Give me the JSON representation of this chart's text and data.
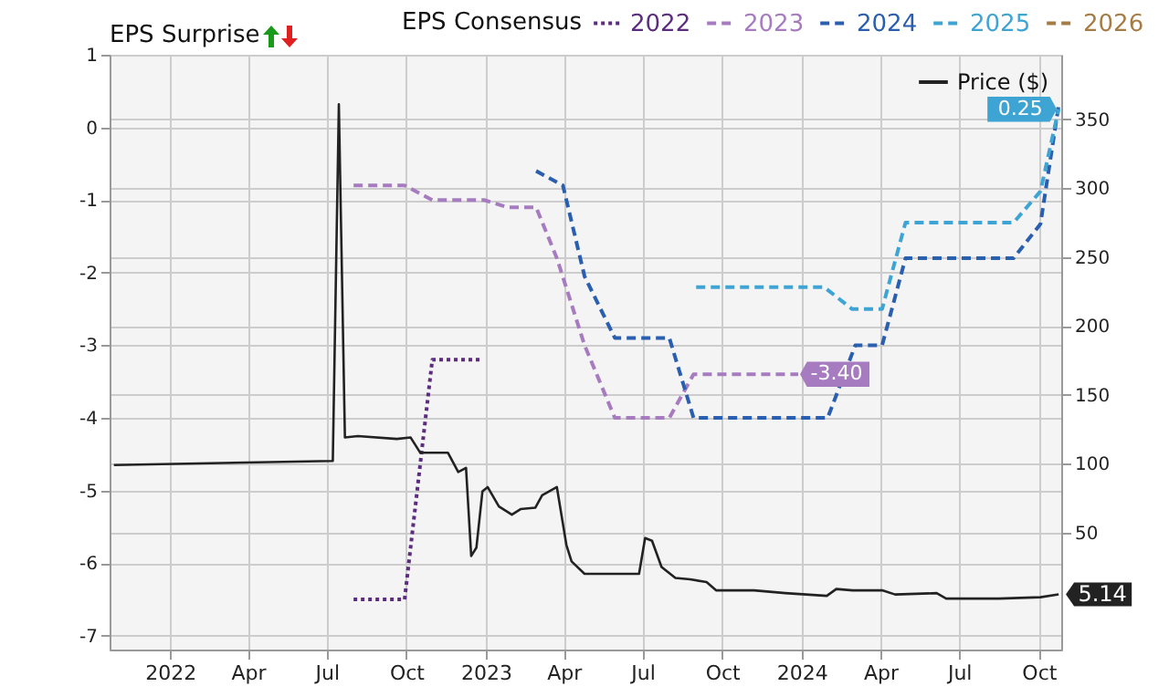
{
  "chart_data": {
    "type": "line",
    "title": "EPS Surprise",
    "legend_title": "EPS Consensus",
    "legend": "top",
    "grid": true,
    "marker": "none",
    "xlim": [
      "2021-10-23",
      "2024-10-27"
    ],
    "xticks": [
      {
        "value": "2022-01-01",
        "label": "2022"
      },
      {
        "value": "2022-04-01",
        "label": "Apr"
      },
      {
        "value": "2022-07-01",
        "label": "Jul"
      },
      {
        "value": "2022-10-01",
        "label": "Oct"
      },
      {
        "value": "2023-01-01",
        "label": "2023"
      },
      {
        "value": "2023-04-01",
        "label": "Apr"
      },
      {
        "value": "2023-07-01",
        "label": "Jul"
      },
      {
        "value": "2023-10-01",
        "label": "Oct"
      },
      {
        "value": "2024-01-01",
        "label": "2024"
      },
      {
        "value": "2024-04-01",
        "label": "Apr"
      },
      {
        "value": "2024-07-01",
        "label": "Jul"
      },
      {
        "value": "2024-10-01",
        "label": "Oct"
      }
    ],
    "ylim": [
      -7.19,
      1
    ],
    "yticks": [
      -7,
      -6,
      -5,
      -4,
      -3,
      -2,
      -1,
      0,
      1
    ],
    "y2lim": [
      -35,
      397
    ],
    "y2ticks": [
      50,
      100,
      150,
      200,
      250,
      300,
      350
    ],
    "series": [
      {
        "name": "2022",
        "color": "#5c2d7e",
        "line_style": "dotted",
        "x": [
          "2022-08-01",
          "2022-09-29",
          "2022-10-31",
          "2022-12-28"
        ],
        "values": [
          -6.5,
          -6.5,
          -3.2,
          -3.2
        ]
      },
      {
        "name": "2023",
        "color": "#a77bc0",
        "line_style": "dashed",
        "x": [
          "2022-08-01",
          "2022-09-29",
          "2022-10-31",
          "2022-12-30",
          "2023-01-26",
          "2023-02-28",
          "2023-03-24",
          "2023-04-25",
          "2023-05-30",
          "2023-08-01",
          "2023-08-29",
          "2023-12-28"
        ],
        "values": [
          -0.8,
          -0.8,
          -1.0,
          -1.0,
          -1.1,
          -1.1,
          -1.8,
          -3.0,
          -4.0,
          -4.0,
          -3.4,
          -3.4
        ],
        "value_labels": [
          null,
          null,
          null,
          null,
          null,
          null,
          null,
          null,
          null,
          null,
          null,
          "-3.40"
        ]
      },
      {
        "name": "2024",
        "color": "#2a5fb0",
        "line_style": "dashed",
        "x": [
          "2023-02-28",
          "2023-03-31",
          "2023-04-25",
          "2023-05-30",
          "2023-08-01",
          "2023-08-29",
          "2024-01-31",
          "2024-03-03",
          "2024-04-03",
          "2024-04-30",
          "2024-09-02",
          "2024-10-03",
          "2024-10-24"
        ],
        "values": [
          -0.6,
          -0.8,
          -2.05,
          -2.9,
          -2.9,
          -4.0,
          -4.0,
          -3.0,
          -3.0,
          -1.8,
          -1.8,
          -1.33,
          0.3
        ]
      },
      {
        "name": "2025",
        "color": "#3ea4d4",
        "line_style": "dashed",
        "x": [
          "2023-09-01",
          "2024-01-27",
          "2024-02-28",
          "2024-04-03",
          "2024-04-30",
          "2024-09-02",
          "2024-10-03",
          "2024-10-24"
        ],
        "values": [
          -2.2,
          -2.2,
          -2.5,
          -2.5,
          -1.31,
          -1.31,
          -0.88,
          0.25
        ],
        "value_labels": [
          null,
          null,
          null,
          null,
          null,
          null,
          null,
          "0.25"
        ]
      },
      {
        "name": "2026",
        "color": "#a57c45",
        "line_style": "dashed"
      },
      {
        "name": "Price ($)",
        "color": "#222222",
        "line_style": "solid",
        "axis": "y2",
        "x": [
          "2021-10-28",
          "2022-07-08",
          "2022-07-15",
          "2022-07-22",
          "2022-08-06",
          "2022-09-20",
          "2022-10-06",
          "2022-10-17",
          "2022-11-18",
          "2022-11-30",
          "2022-12-09",
          "2022-12-15",
          "2022-12-21",
          "2022-12-28",
          "2023-01-03",
          "2023-01-16",
          "2023-01-31",
          "2023-02-10",
          "2023-02-27",
          "2023-03-07",
          "2023-03-24",
          "2023-04-04",
          "2023-04-10",
          "2023-04-25",
          "2023-05-31",
          "2023-06-27",
          "2023-07-04",
          "2023-07-12",
          "2023-07-23",
          "2023-08-08",
          "2023-08-25",
          "2023-09-13",
          "2023-09-24",
          "2023-11-07",
          "2023-12-13",
          "2024-01-30",
          "2024-02-10",
          "2024-02-29",
          "2024-04-03",
          "2024-04-18",
          "2024-06-05",
          "2024-06-16",
          "2024-08-16",
          "2024-10-03",
          "2024-10-24"
        ],
        "values": [
          99,
          102,
          361,
          119,
          120,
          118,
          119,
          108,
          108,
          94,
          97,
          33,
          39,
          80,
          83,
          69,
          63,
          67,
          68,
          77,
          83,
          41,
          29,
          20,
          20,
          20,
          46,
          44,
          25,
          17,
          16,
          14,
          8,
          8,
          6,
          4,
          9,
          8,
          8,
          5,
          6,
          2,
          2,
          3,
          5.14
        ],
        "value_labels": [
          null,
          null,
          null,
          null,
          null,
          null,
          null,
          null,
          null,
          null,
          null,
          null,
          null,
          null,
          null,
          null,
          null,
          null,
          null,
          null,
          null,
          null,
          null,
          null,
          null,
          null,
          null,
          null,
          null,
          null,
          null,
          null,
          null,
          null,
          null,
          null,
          null,
          null,
          null,
          null,
          null,
          null,
          null,
          null,
          "5.14"
        ]
      }
    ]
  }
}
